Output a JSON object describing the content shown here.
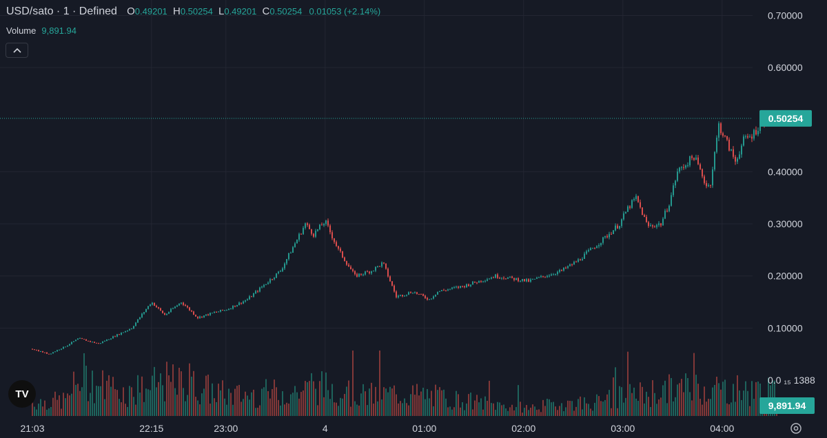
{
  "header": {
    "symbol": "USD/sato · 1 · Defined",
    "o_label": "O",
    "o_value": "0.49201",
    "h_label": "H",
    "h_value": "0.50254",
    "l_label": "L",
    "l_value": "0.49201",
    "c_label": "C",
    "c_value": "0.50254",
    "change": "0.01053 (+2.14%)"
  },
  "volume_row": {
    "label": "Volume",
    "value": "9,891.94"
  },
  "colors": {
    "background": "#161a25",
    "up": "#26a69a",
    "down": "#ef5350",
    "grid": "#232632",
    "text": "#d1d4dc"
  },
  "icons": {
    "collapse": "chevron-up-icon",
    "logo": "tradingview-logo",
    "settings": "gear-icon"
  },
  "logo_text": "TV",
  "chart_data": {
    "type": "candlestick",
    "y_axis_labels": [
      "0.70000",
      "0.60000",
      "0.40000",
      "0.30000",
      "0.20000",
      "0.10000"
    ],
    "y_ticks": [
      0.7,
      0.6,
      0.4,
      0.3,
      0.2,
      0.1
    ],
    "y_range": [
      0.0,
      0.72
    ],
    "volume_axis_label": "0.0 ₁₅ 1388",
    "last_price_label": "0.50254",
    "last_price": 0.50254,
    "last_volume_label": "9,891.94",
    "x_tick_labels": [
      "21:03",
      "22:15",
      "23:00",
      "4",
      "01:00",
      "02:00",
      "03:00",
      "04:00"
    ],
    "x_tick_positions_min": [
      0,
      72,
      117,
      177,
      237,
      297,
      357,
      417
    ],
    "grid": true,
    "price_series": {
      "t_min": [
        0,
        10,
        20,
        28,
        40,
        60,
        72,
        80,
        90,
        100,
        110,
        117,
        130,
        150,
        165,
        170,
        177,
        185,
        195,
        205,
        212,
        220,
        230,
        240,
        245,
        260,
        280,
        300,
        320,
        330,
        345,
        355,
        360,
        365,
        372,
        380,
        385,
        390,
        400,
        408,
        410,
        415,
        425,
        430,
        435,
        440,
        445
      ],
      "close": [
        0.06,
        0.05,
        0.065,
        0.08,
        0.07,
        0.1,
        0.15,
        0.125,
        0.15,
        0.12,
        0.13,
        0.135,
        0.155,
        0.21,
        0.3,
        0.28,
        0.305,
        0.25,
        0.2,
        0.21,
        0.225,
        0.16,
        0.17,
        0.155,
        0.17,
        0.18,
        0.2,
        0.19,
        0.21,
        0.23,
        0.27,
        0.3,
        0.33,
        0.35,
        0.295,
        0.3,
        0.34,
        0.4,
        0.43,
        0.37,
        0.38,
        0.49,
        0.42,
        0.46,
        0.47,
        0.49,
        0.502
      ]
    },
    "volume_series": {
      "t_min": [
        0,
        20,
        30,
        40,
        60,
        80,
        100,
        120,
        140,
        160,
        180,
        200,
        220,
        240,
        260,
        280,
        300,
        320,
        340,
        360,
        380,
        400,
        420,
        440,
        450
      ],
      "value": [
        3000,
        3500,
        9000,
        7000,
        5000,
        7500,
        6500,
        4500,
        5000,
        5500,
        6500,
        4500,
        5000,
        4500,
        3500,
        2500,
        1800,
        2800,
        3000,
        4500,
        5500,
        6500,
        6000,
        5500,
        5000
      ]
    }
  }
}
